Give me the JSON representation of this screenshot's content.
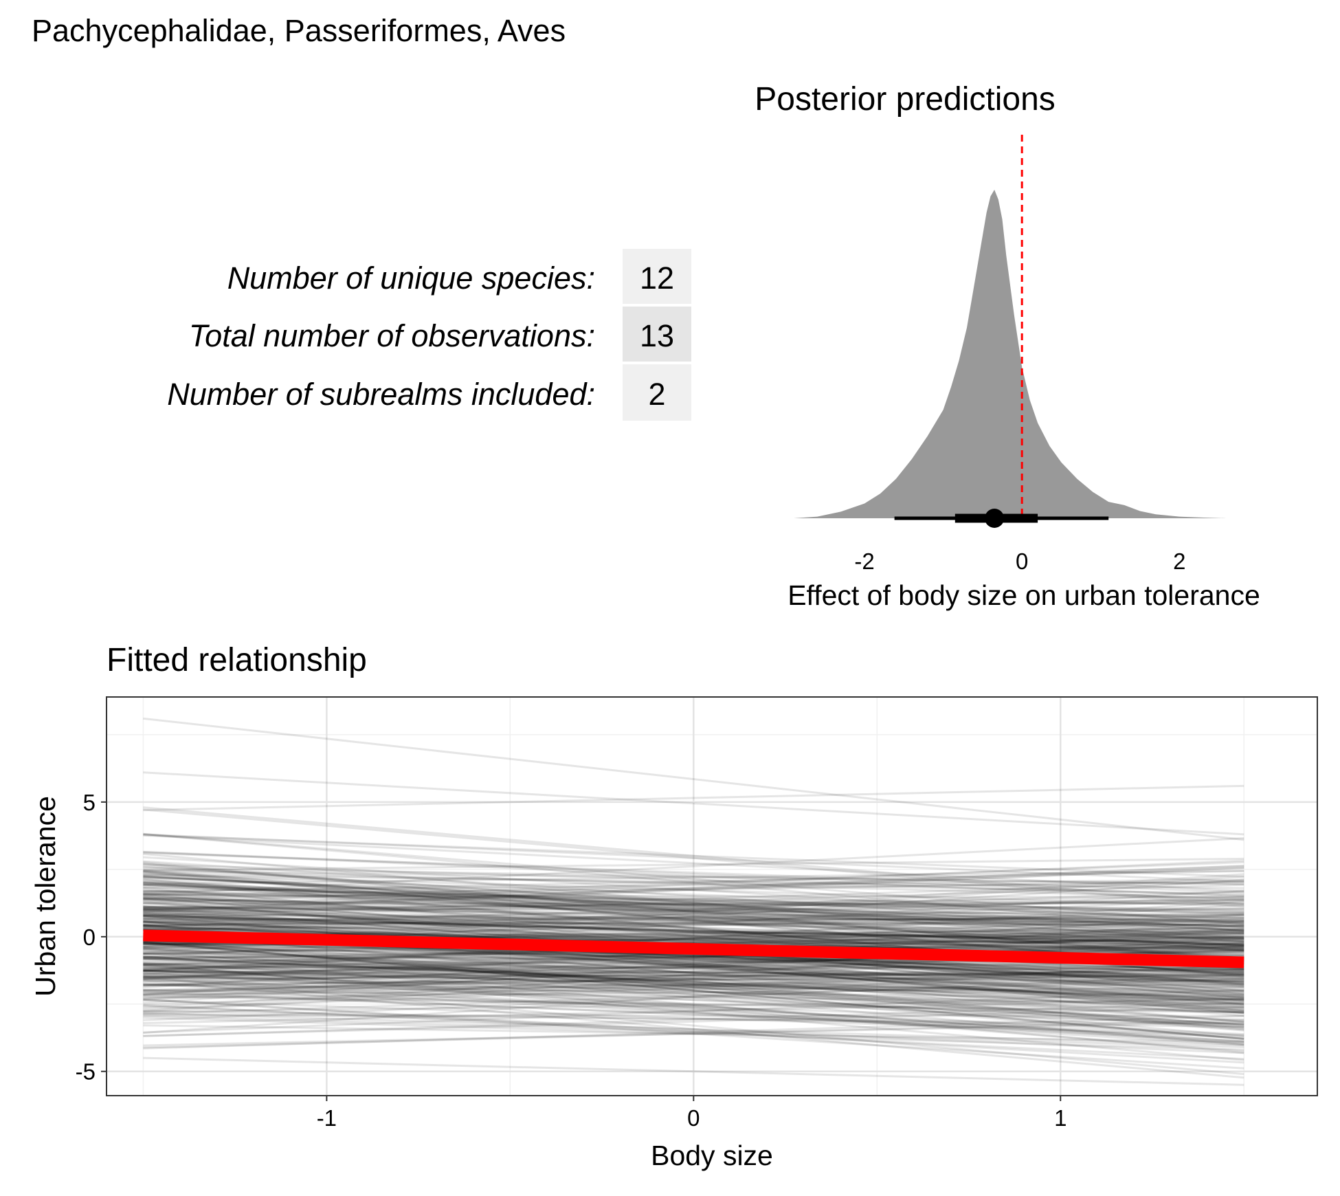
{
  "figure": {
    "title": "Pachycephalidae, Passeriformes, Aves"
  },
  "summary_table": {
    "rows": [
      {
        "label": "Number of unique species:",
        "value": "12"
      },
      {
        "label": "Total number of observations:",
        "value": "13"
      },
      {
        "label": "Number of subrealms included:",
        "value": "2"
      }
    ],
    "cell_colors": [
      "#f0f0f0",
      "#e5e5e5",
      "#f0f0f0"
    ]
  },
  "chart_data": [
    {
      "type": "area",
      "title": "Posterior predictions",
      "xlabel": "Effect of body size on urban tolerance",
      "ylabel": "",
      "x_ticks": [
        -2,
        0,
        2
      ],
      "x_tick_labels": [
        "-2",
        "0",
        "2"
      ],
      "xlim": [
        -2.9,
        2.6
      ],
      "density": {
        "x": [
          -2.9,
          -2.6,
          -2.3,
          -2.0,
          -1.8,
          -1.6,
          -1.4,
          -1.2,
          -1.0,
          -0.9,
          -0.8,
          -0.7,
          -0.6,
          -0.5,
          -0.45,
          -0.4,
          -0.35,
          -0.3,
          -0.25,
          -0.2,
          -0.1,
          0.0,
          0.1,
          0.2,
          0.35,
          0.5,
          0.7,
          0.9,
          1.1,
          1.3,
          1.5,
          1.7,
          2.0,
          2.3,
          2.6
        ],
        "y": [
          0.0,
          0.005,
          0.02,
          0.045,
          0.075,
          0.12,
          0.18,
          0.25,
          0.33,
          0.4,
          0.48,
          0.58,
          0.72,
          0.86,
          0.93,
          0.98,
          1.0,
          0.97,
          0.91,
          0.8,
          0.62,
          0.46,
          0.36,
          0.29,
          0.22,
          0.17,
          0.12,
          0.08,
          0.05,
          0.04,
          0.022,
          0.012,
          0.005,
          0.002,
          0.0
        ],
        "fill_color": "#999999"
      },
      "point_estimate": -0.35,
      "interval_inner": [
        -0.85,
        0.2
      ],
      "interval_outer": [
        -1.62,
        1.1
      ],
      "reference_line": {
        "x": 0,
        "color": "#ff0000",
        "style": "dashed"
      }
    },
    {
      "type": "line",
      "title": "Fitted relationship",
      "xlabel": "Body size",
      "ylabel": "Urban tolerance",
      "xlim": [
        -1.6,
        1.7
      ],
      "ylim": [
        -5.9,
        8.9
      ],
      "x_ticks": [
        -1,
        0,
        1
      ],
      "x_tick_labels": [
        "-1",
        "0",
        "1"
      ],
      "y_ticks": [
        -5,
        0,
        5
      ],
      "y_tick_labels": [
        "-5",
        "0",
        "5"
      ],
      "x_range": [
        -1.5,
        1.5
      ],
      "posterior_draws": {
        "count": 400,
        "intercept_mean": -0.45,
        "intercept_sd": 1.5,
        "slope_mean": -0.35,
        "slope_sd": 0.6,
        "color": "#000000",
        "highlight_lines": [
          {
            "y_start": 8.1,
            "y_end": 3.6
          },
          {
            "y_start": 6.1,
            "y_end": 3.8
          },
          {
            "y_start": 4.7,
            "y_end": 5.6
          },
          {
            "y_start": -4.5,
            "y_end": -5.5
          }
        ]
      },
      "mean_fit": {
        "y_start": 0.05,
        "y_end": -0.95,
        "color": "#ff0000"
      }
    }
  ]
}
